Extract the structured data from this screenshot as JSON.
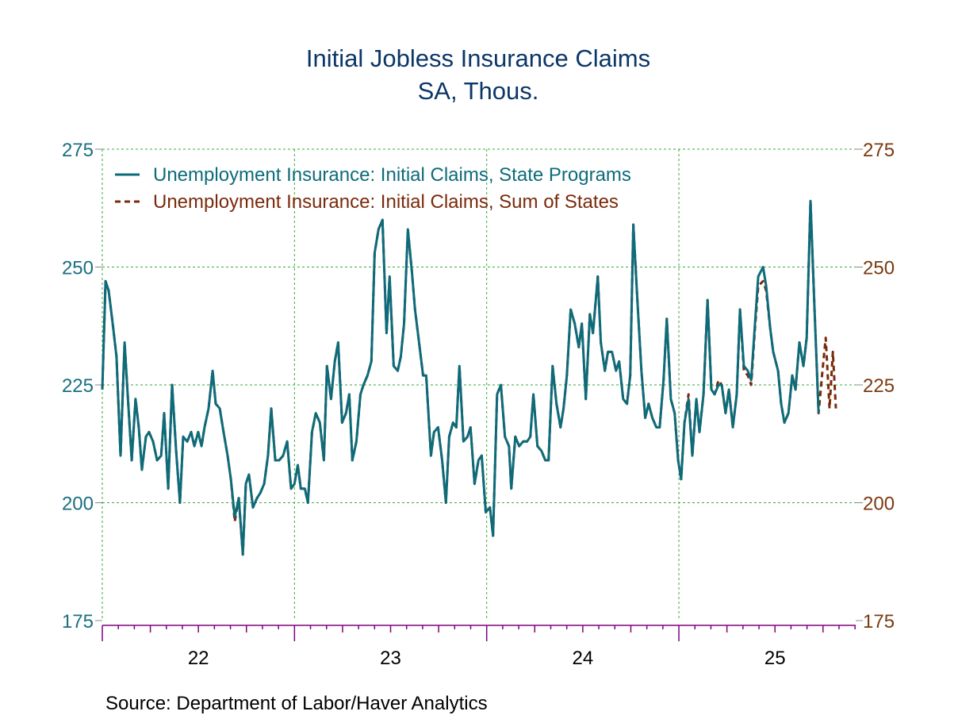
{
  "chart_data": {
    "type": "line",
    "title": "Initial Jobless Insurance Claims",
    "subtitle": "SA, Thous.",
    "source": "Source:  Department of Labor/Haver Analytics",
    "xlim": [
      2022.0,
      2025.92
    ],
    "x_tick_labels": [
      {
        "year": 2022,
        "label": "22"
      },
      {
        "year": 2023,
        "label": "23"
      },
      {
        "year": 2024,
        "label": "24"
      },
      {
        "year": 2025,
        "label": "25"
      }
    ],
    "ylim": [
      175,
      275
    ],
    "y_ticks": [
      175,
      200,
      225,
      250,
      275
    ],
    "y_tick_labels_left": [
      "175",
      "200",
      "225",
      "250",
      "275"
    ],
    "y_tick_labels_right": [
      "175",
      "200",
      "225",
      "250",
      "275"
    ],
    "grid": true,
    "legend_placement": "top-left",
    "colors": {
      "state": "#0e6b7a",
      "sum": "#7a2a0a",
      "title": "#0b3668",
      "left_axis": "#1a6f80",
      "right_axis": "#7a3a10",
      "grid": "#3aaa3a",
      "x_axis": "#800080"
    },
    "series": [
      {
        "name": "Unemployment Insurance: Initial Claims, State Programs",
        "style": "solid",
        "key": "state"
      },
      {
        "name": "Unemployment Insurance: Initial Claims, Sum of States",
        "style": "dashed",
        "key": "sum"
      }
    ],
    "rows_columns": [
      "year",
      "state",
      "sum"
    ],
    "rows": [
      [
        2022.0,
        224,
        224
      ],
      [
        2022.017,
        247,
        247
      ],
      [
        2022.033,
        245,
        245
      ],
      [
        2022.054,
        238,
        238
      ],
      [
        2022.074,
        231,
        231
      ],
      [
        2022.095,
        210,
        210
      ],
      [
        2022.116,
        234,
        234
      ],
      [
        2022.132,
        223,
        223
      ],
      [
        2022.153,
        209,
        209
      ],
      [
        2022.173,
        222,
        222
      ],
      [
        2022.19,
        216,
        216
      ],
      [
        2022.206,
        207,
        207
      ],
      [
        2022.227,
        214,
        214
      ],
      [
        2022.243,
        215,
        215
      ],
      [
        2022.264,
        213,
        213
      ],
      [
        2022.285,
        209,
        209
      ],
      [
        2022.306,
        210,
        210
      ],
      [
        2022.322,
        219,
        219
      ],
      [
        2022.343,
        203,
        203
      ],
      [
        2022.363,
        225,
        225
      ],
      [
        2022.384,
        211,
        211
      ],
      [
        2022.404,
        200,
        200
      ],
      [
        2022.421,
        214,
        214
      ],
      [
        2022.442,
        213,
        213
      ],
      [
        2022.462,
        215,
        215
      ],
      [
        2022.479,
        212,
        212
      ],
      [
        2022.499,
        215,
        215
      ],
      [
        2022.516,
        212,
        212
      ],
      [
        2022.532,
        216,
        216
      ],
      [
        2022.553,
        220,
        220
      ],
      [
        2022.574,
        228,
        228
      ],
      [
        2022.59,
        221,
        221
      ],
      [
        2022.611,
        220,
        220
      ],
      [
        2022.631,
        215,
        215
      ],
      [
        2022.652,
        210,
        210
      ],
      [
        2022.669,
        205,
        205
      ],
      [
        2022.689,
        197,
        196
      ],
      [
        2022.71,
        201,
        201
      ],
      [
        2022.731,
        189,
        189
      ],
      [
        2022.747,
        204,
        204
      ],
      [
        2022.763,
        206,
        206
      ],
      [
        2022.784,
        199,
        199
      ],
      [
        2022.805,
        201,
        201
      ],
      [
        2022.821,
        202,
        202
      ],
      [
        2022.842,
        204,
        204
      ],
      [
        2022.862,
        210,
        210
      ],
      [
        2022.879,
        220,
        220
      ],
      [
        2022.9,
        209,
        209
      ],
      [
        2022.92,
        209,
        209
      ],
      [
        2022.941,
        210,
        210
      ],
      [
        2022.962,
        213,
        213
      ],
      [
        2022.982,
        203,
        203
      ],
      [
        2023.0,
        204,
        204
      ],
      [
        2023.017,
        208,
        208
      ],
      [
        2023.033,
        203,
        203
      ],
      [
        2023.054,
        203,
        203
      ],
      [
        2023.07,
        200,
        200
      ],
      [
        2023.091,
        215,
        215
      ],
      [
        2023.111,
        219,
        219
      ],
      [
        2023.132,
        217,
        217
      ],
      [
        2023.153,
        209,
        209
      ],
      [
        2023.169,
        229,
        229
      ],
      [
        2023.19,
        222,
        222
      ],
      [
        2023.21,
        230,
        230
      ],
      [
        2023.227,
        234,
        234
      ],
      [
        2023.248,
        217,
        217
      ],
      [
        2023.268,
        219,
        219
      ],
      [
        2023.285,
        223,
        223
      ],
      [
        2023.301,
        209,
        209
      ],
      [
        2023.322,
        213,
        213
      ],
      [
        2023.343,
        223,
        223
      ],
      [
        2023.359,
        225,
        225
      ],
      [
        2023.38,
        227,
        227
      ],
      [
        2023.4,
        230,
        230
      ],
      [
        2023.417,
        253,
        253
      ],
      [
        2023.437,
        258,
        258
      ],
      [
        2023.458,
        260,
        260
      ],
      [
        2023.479,
        236,
        236
      ],
      [
        2023.495,
        248,
        248
      ],
      [
        2023.516,
        229,
        229
      ],
      [
        2023.537,
        228,
        228
      ],
      [
        2023.553,
        231,
        231
      ],
      [
        2023.57,
        238,
        238
      ],
      [
        2023.59,
        258,
        258
      ],
      [
        2023.611,
        249,
        249
      ],
      [
        2023.627,
        241,
        241
      ],
      [
        2023.648,
        234,
        234
      ],
      [
        2023.669,
        227,
        227
      ],
      [
        2023.685,
        227,
        227
      ],
      [
        2023.71,
        210,
        210
      ],
      [
        2023.726,
        215,
        215
      ],
      [
        2023.747,
        216,
        216
      ],
      [
        2023.768,
        209,
        209
      ],
      [
        2023.788,
        200,
        200
      ],
      [
        2023.805,
        214,
        214
      ],
      [
        2023.825,
        217,
        217
      ],
      [
        2023.842,
        216,
        216
      ],
      [
        2023.858,
        229,
        229
      ],
      [
        2023.879,
        213,
        213
      ],
      [
        2023.9,
        214,
        214
      ],
      [
        2023.916,
        216,
        216
      ],
      [
        2023.937,
        204,
        204
      ],
      [
        2023.957,
        209,
        209
      ],
      [
        2023.974,
        210,
        210
      ],
      [
        2023.995,
        198,
        198
      ],
      [
        2024.017,
        199,
        199
      ],
      [
        2024.033,
        193,
        193
      ],
      [
        2024.054,
        223,
        223
      ],
      [
        2024.074,
        225,
        225
      ],
      [
        2024.095,
        214,
        214
      ],
      [
        2024.116,
        212,
        212
      ],
      [
        2024.128,
        203,
        203
      ],
      [
        2024.149,
        214,
        214
      ],
      [
        2024.169,
        212,
        212
      ],
      [
        2024.19,
        213,
        213
      ],
      [
        2024.21,
        213,
        213
      ],
      [
        2024.227,
        214,
        214
      ],
      [
        2024.243,
        223,
        223
      ],
      [
        2024.264,
        212,
        212
      ],
      [
        2024.285,
        211,
        211
      ],
      [
        2024.305,
        209,
        209
      ],
      [
        2024.322,
        209,
        209
      ],
      [
        2024.343,
        229,
        229
      ],
      [
        2024.363,
        221,
        221
      ],
      [
        2024.384,
        216,
        216
      ],
      [
        2024.4,
        220,
        220
      ],
      [
        2024.417,
        227,
        227
      ],
      [
        2024.437,
        241,
        241
      ],
      [
        2024.458,
        238,
        238
      ],
      [
        2024.479,
        233,
        233
      ],
      [
        2024.495,
        238,
        238
      ],
      [
        2024.516,
        222,
        222
      ],
      [
        2024.537,
        240,
        240
      ],
      [
        2024.553,
        236,
        236
      ],
      [
        2024.578,
        248,
        248
      ],
      [
        2024.594,
        234,
        234
      ],
      [
        2024.615,
        228,
        228
      ],
      [
        2024.631,
        232,
        232
      ],
      [
        2024.652,
        232,
        232
      ],
      [
        2024.673,
        228,
        228
      ],
      [
        2024.689,
        230,
        230
      ],
      [
        2024.71,
        222,
        222
      ],
      [
        2024.73,
        221,
        221
      ],
      [
        2024.747,
        227,
        227
      ],
      [
        2024.763,
        259,
        259
      ],
      [
        2024.784,
        243,
        243
      ],
      [
        2024.805,
        228,
        228
      ],
      [
        2024.825,
        218,
        218
      ],
      [
        2024.842,
        221,
        221
      ],
      [
        2024.862,
        218,
        218
      ],
      [
        2024.883,
        216,
        216
      ],
      [
        2024.9,
        216,
        216
      ],
      [
        2024.92,
        226,
        226
      ],
      [
        2024.937,
        239,
        239
      ],
      [
        2024.958,
        222,
        222
      ],
      [
        2024.978,
        219,
        219
      ],
      [
        2024.996,
        209,
        209
      ],
      [
        2025.012,
        205,
        205
      ],
      [
        2025.029,
        217,
        217
      ],
      [
        2025.05,
        222,
        223
      ],
      [
        2025.07,
        210,
        210
      ],
      [
        2025.091,
        222,
        222
      ],
      [
        2025.107,
        215,
        215
      ],
      [
        2025.128,
        223,
        223
      ],
      [
        2025.149,
        243,
        243
      ],
      [
        2025.169,
        224,
        224
      ],
      [
        2025.186,
        223,
        223
      ],
      [
        2025.206,
        225,
        226
      ],
      [
        2025.223,
        225,
        225
      ],
      [
        2025.243,
        219,
        219
      ],
      [
        2025.26,
        224,
        224
      ],
      [
        2025.281,
        216,
        216
      ],
      [
        2025.301,
        223,
        223
      ],
      [
        2025.318,
        241,
        241
      ],
      [
        2025.338,
        229,
        228
      ],
      [
        2025.359,
        228,
        227
      ],
      [
        2025.376,
        226,
        225
      ],
      [
        2025.396,
        238,
        237
      ],
      [
        2025.413,
        248,
        246
      ],
      [
        2025.438,
        250,
        247
      ],
      [
        2025.454,
        246,
        245
      ],
      [
        2025.475,
        237,
        237
      ],
      [
        2025.491,
        232,
        232
      ],
      [
        2025.516,
        228,
        228
      ],
      [
        2025.532,
        221,
        221
      ],
      [
        2025.549,
        217,
        217
      ],
      [
        2025.57,
        219,
        219
      ],
      [
        2025.59,
        227,
        227
      ],
      [
        2025.607,
        224,
        224
      ],
      [
        2025.627,
        234,
        234
      ],
      [
        2025.648,
        229,
        229
      ],
      [
        2025.665,
        235,
        235
      ],
      [
        2025.685,
        264,
        264
      ],
      [
        2025.706,
        241,
        241
      ],
      [
        2025.727,
        219,
        219
      ],
      [
        2025.747,
        null,
        228
      ],
      [
        2025.764,
        null,
        235
      ],
      [
        2025.784,
        null,
        220
      ],
      [
        2025.801,
        null,
        232
      ],
      [
        2025.817,
        null,
        220
      ]
    ]
  }
}
